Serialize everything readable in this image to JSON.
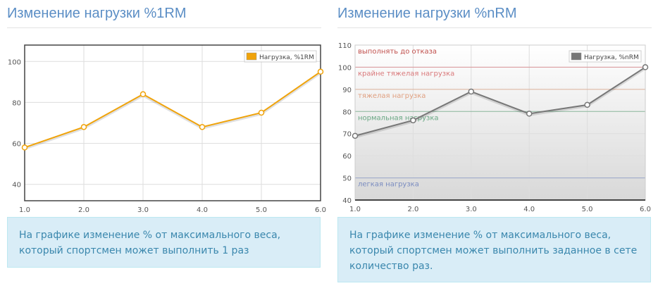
{
  "left_panel": {
    "title": "Изменение нагрузки %1RM",
    "description": "На графике изменение % от максимального веса, который спортсмен может выполнить 1 раз"
  },
  "right_panel": {
    "title": "Изменение нагрузки %nRM",
    "description": "На графике изменение % от максимального веса, который спортсмен может выполнить заданное в сете количество раз."
  },
  "chart_data": [
    {
      "type": "line",
      "title": "",
      "xlabel": "",
      "ylabel": "",
      "x": [
        1.0,
        2.0,
        3.0,
        4.0,
        5.0,
        6.0
      ],
      "xticks": [
        "1.0",
        "2.0",
        "3.0",
        "4.0",
        "5.0",
        "6.0"
      ],
      "xlim": [
        1,
        6
      ],
      "ylim": [
        32,
        108
      ],
      "yticks": [
        40,
        60,
        80,
        100
      ],
      "grid": true,
      "legend_position": "top-right",
      "series": [
        {
          "name": "Нагрузка, %1RM",
          "values": [
            58,
            68,
            84,
            68,
            75,
            95
          ],
          "color": "#f0a30a"
        }
      ]
    },
    {
      "type": "line",
      "title": "",
      "xlabel": "",
      "ylabel": "",
      "x": [
        1.0,
        2.0,
        3.0,
        4.0,
        5.0,
        6.0
      ],
      "xticks": [
        "1.0",
        "2.0",
        "3.0",
        "4.0",
        "5.0",
        "6.0"
      ],
      "xlim": [
        1,
        6
      ],
      "ylim": [
        40,
        110
      ],
      "yticks": [
        40,
        50,
        60,
        70,
        80,
        90,
        100,
        110
      ],
      "grid": true,
      "legend_position": "top-right",
      "series": [
        {
          "name": "Нагрузка, %nRM",
          "values": [
            69,
            76,
            89,
            79,
            83,
            100
          ],
          "color": "#777777"
        }
      ],
      "zones": [
        {
          "label": "выполнять до отказа",
          "value": 110,
          "color": "#c0504d"
        },
        {
          "label": "крайне тяжелая нагрузка",
          "value": 100,
          "color": "#d9787a"
        },
        {
          "label": "тяжелая нагрузка",
          "value": 90,
          "color": "#e0a080"
        },
        {
          "label": "нормальная нагрузка",
          "value": 80,
          "color": "#6aa884"
        },
        {
          "label": "легкая нагрузка",
          "value": 50,
          "color": "#7a8cc0"
        }
      ]
    }
  ]
}
